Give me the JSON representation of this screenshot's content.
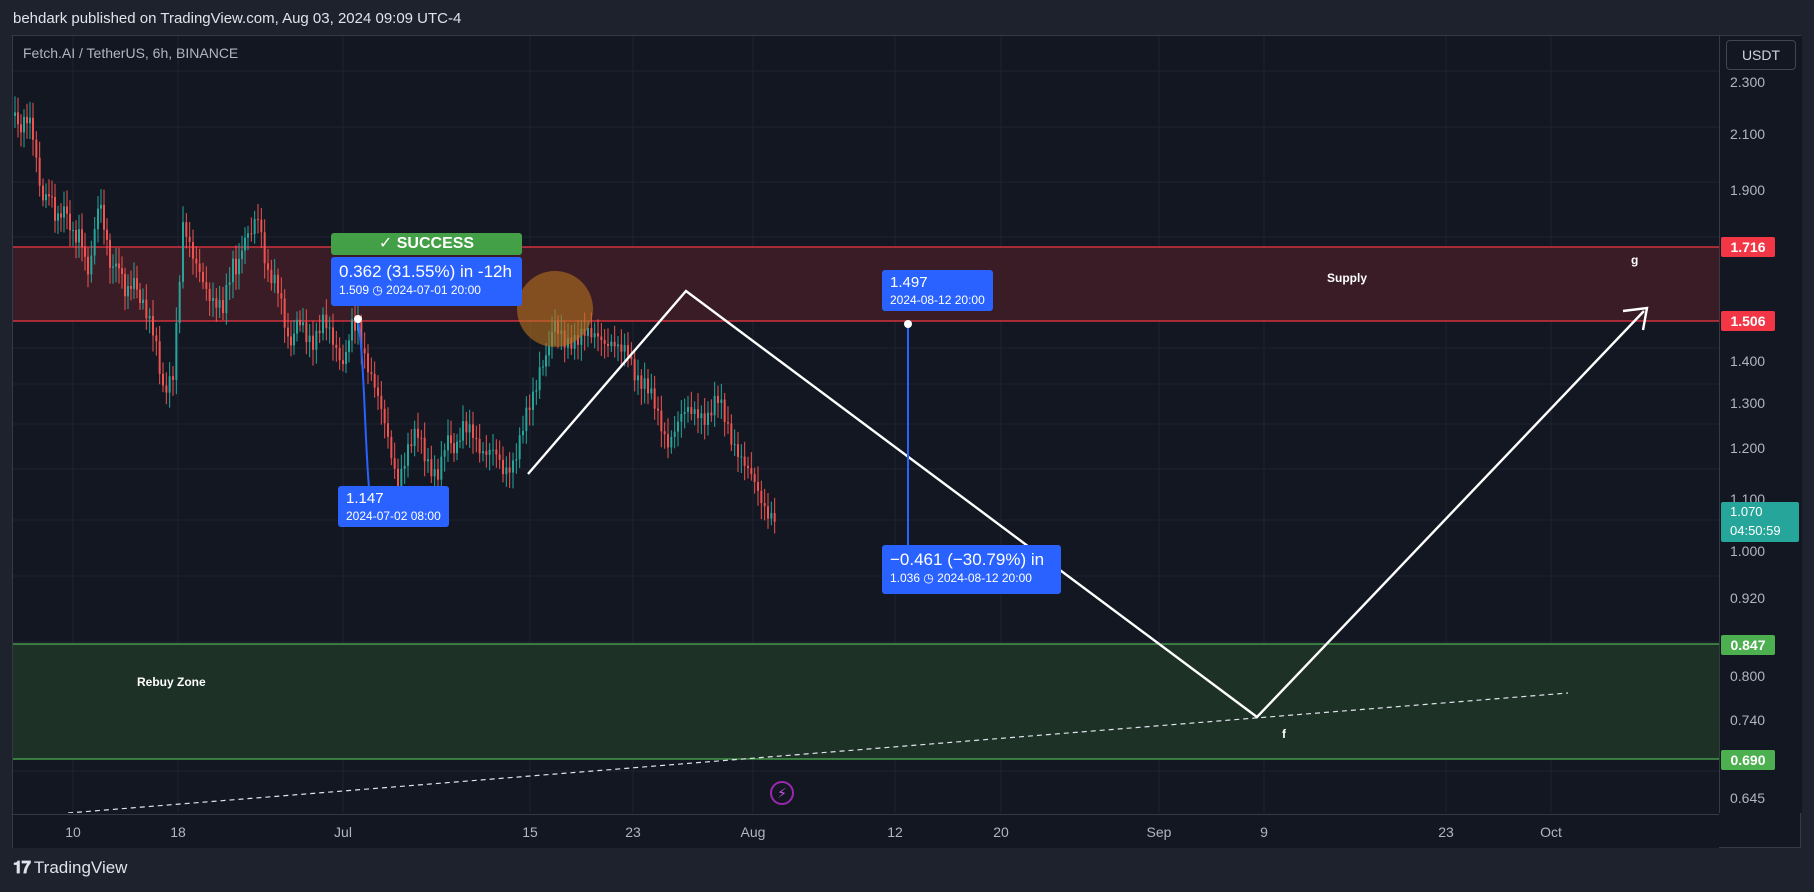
{
  "header": {
    "publisher_line": "behdark published on TradingView.com, Aug 03, 2024 09:09 UTC-4"
  },
  "chart": {
    "symbol_title": "Fetch.AI / TetherUS, 6h, BINANCE",
    "currency_button": "USDT",
    "price_axis_labels": [
      "2.300",
      "2.100",
      "1.900",
      "1.400",
      "1.300",
      "1.200",
      "1.100",
      "1.000",
      "0.920",
      "0.800",
      "0.740",
      "0.645"
    ],
    "time_axis_labels": [
      "10",
      "18",
      "Jul",
      "15",
      "23",
      "Aug",
      "12",
      "20",
      "Sep",
      "9",
      "23",
      "Oct"
    ],
    "price_tags": {
      "supply_top": "1.716",
      "supply_bottom": "1.506",
      "rebuy_top": "0.847",
      "rebuy_bottom": "0.690"
    },
    "current_price": {
      "price": "1.070",
      "countdown": "04:50:59"
    },
    "zones": {
      "supply_label": "Supply",
      "rebuy_label": "Rebuy Zone"
    },
    "wave_labels": {
      "g": "g",
      "f": "f"
    },
    "success_badge": "✓ SUCCESS",
    "callouts": {
      "first_measure": {
        "line1": "0.362 (31.55%) in -12h",
        "line2": "1.509 ◷ 2024-07-01  20:00"
      },
      "first_low": {
        "line1": "1.147",
        "line2": "2024-07-02 08:00"
      },
      "projection_top": {
        "line1": "1.497",
        "line2": "2024-08-12 20:00"
      },
      "projection_measure": {
        "line1": "−0.461 (−30.79%) in",
        "line2": "1.036 ◷ 2024-08-12  20:00"
      }
    },
    "colors": {
      "supply_fill": "#3b1c26",
      "supply_border": "#f23645",
      "rebuy_fill": "#1d3328",
      "rebuy_border": "#4caf50",
      "candle_up": "#26a69a",
      "candle_down": "#ef5350",
      "callout_blue": "#2962ff",
      "success_green": "#43a047"
    }
  },
  "footer": {
    "logo_text": "TradingView",
    "logo_icon": "tradingview-logo-icon"
  }
}
